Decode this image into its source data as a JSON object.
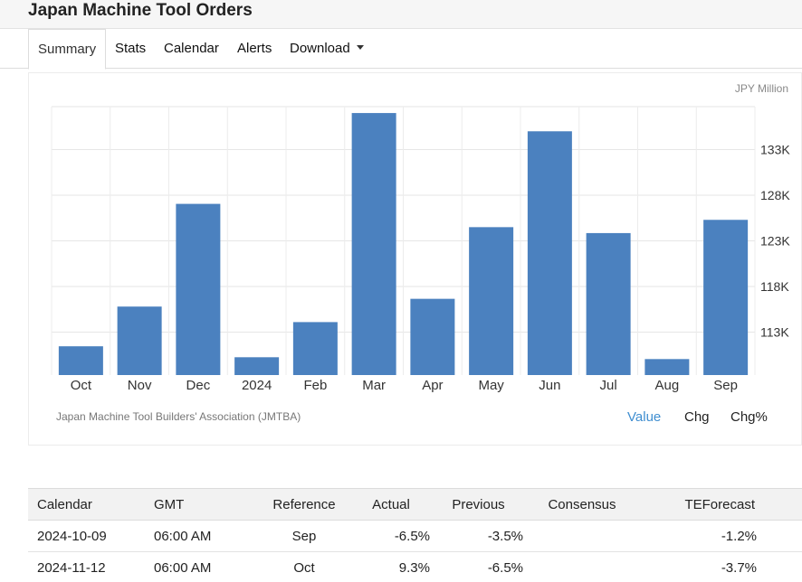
{
  "page": {
    "title": "Japan Machine Tool Orders"
  },
  "tabs": [
    {
      "label": "Summary"
    },
    {
      "label": "Stats"
    },
    {
      "label": "Calendar"
    },
    {
      "label": "Alerts"
    },
    {
      "label": "Download"
    }
  ],
  "chart": {
    "unit_label": "JPY Million",
    "source": "Japan Machine Tool Builders' Association (JMTBA)",
    "modes": [
      {
        "label": "Value"
      },
      {
        "label": "Chg"
      },
      {
        "label": "Chg%"
      }
    ],
    "bar_color": "#4b81bf"
  },
  "chart_data": {
    "type": "bar",
    "title": "",
    "xlabel": "",
    "ylabel": "JPY Million",
    "categories": [
      "Oct",
      "Nov",
      "Dec",
      "2024",
      "Feb",
      "Mar",
      "Apr",
      "May",
      "Jun",
      "Jul",
      "Aug",
      "Sep"
    ],
    "values": [
      111450,
      115800,
      127050,
      110250,
      114100,
      137000,
      116650,
      124500,
      135000,
      123850,
      110050,
      125300
    ],
    "yticks": [
      113000,
      118000,
      123000,
      128000,
      133000
    ],
    "ytick_labels": [
      "113K",
      "118K",
      "123K",
      "128K",
      "133K"
    ],
    "ylim": [
      108300,
      137700
    ],
    "y_axis_position": "right",
    "grid": true
  },
  "calendar": {
    "headers": [
      "Calendar",
      "GMT",
      "Reference",
      "Actual",
      "Previous",
      "Consensus",
      "TEForecast"
    ],
    "rows": [
      [
        "2024-10-09",
        "06:00 AM",
        "Sep",
        "-6.5%",
        "-3.5%",
        "",
        "-1.2%"
      ],
      [
        "2024-11-12",
        "06:00 AM",
        "Oct",
        "9.3%",
        "-6.5%",
        "",
        "-3.7%"
      ]
    ]
  }
}
